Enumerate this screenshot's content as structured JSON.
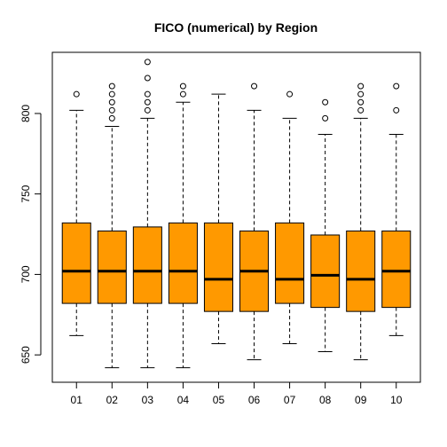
{
  "chart_data": {
    "type": "boxplot",
    "title": "FICO (numerical) by Region",
    "xlabel": "",
    "ylabel": "",
    "ylim": [
      633,
      838
    ],
    "yticks": [
      650,
      700,
      750,
      800
    ],
    "box_color": "#FF9900",
    "categories": [
      "01",
      "02",
      "03",
      "04",
      "05",
      "06",
      "07",
      "08",
      "09",
      "10"
    ],
    "boxes": [
      {
        "label": "01",
        "whisker_low": 662,
        "q1": 682,
        "median": 702,
        "q3": 732,
        "whisker_high": 802,
        "outliers": [
          812
        ]
      },
      {
        "label": "02",
        "whisker_low": 642,
        "q1": 682,
        "median": 702,
        "q3": 727,
        "whisker_high": 792,
        "outliers": [
          797,
          802,
          807,
          812,
          817
        ]
      },
      {
        "label": "03",
        "whisker_low": 642,
        "q1": 682,
        "median": 702,
        "q3": 729.5,
        "whisker_high": 797,
        "outliers": [
          802,
          807,
          812,
          822,
          832
        ]
      },
      {
        "label": "04",
        "whisker_low": 642,
        "q1": 682,
        "median": 702,
        "q3": 732,
        "whisker_high": 807,
        "outliers": [
          812,
          817
        ]
      },
      {
        "label": "05",
        "whisker_low": 657,
        "q1": 677,
        "median": 697,
        "q3": 732,
        "whisker_high": 812,
        "outliers": []
      },
      {
        "label": "06",
        "whisker_low": 647,
        "q1": 677,
        "median": 702,
        "q3": 727,
        "whisker_high": 802,
        "outliers": [
          817
        ]
      },
      {
        "label": "07",
        "whisker_low": 657,
        "q1": 682,
        "median": 697,
        "q3": 732,
        "whisker_high": 797,
        "outliers": [
          812
        ]
      },
      {
        "label": "08",
        "whisker_low": 652,
        "q1": 679.5,
        "median": 699.5,
        "q3": 724.5,
        "whisker_high": 787,
        "outliers": [
          797,
          807
        ]
      },
      {
        "label": "09",
        "whisker_low": 647,
        "q1": 677,
        "median": 697,
        "q3": 727,
        "whisker_high": 797,
        "outliers": [
          802,
          807,
          812,
          817
        ]
      },
      {
        "label": "10",
        "whisker_low": 662,
        "q1": 679.5,
        "median": 702,
        "q3": 727,
        "whisker_high": 787,
        "outliers": [
          802,
          817
        ]
      }
    ]
  }
}
